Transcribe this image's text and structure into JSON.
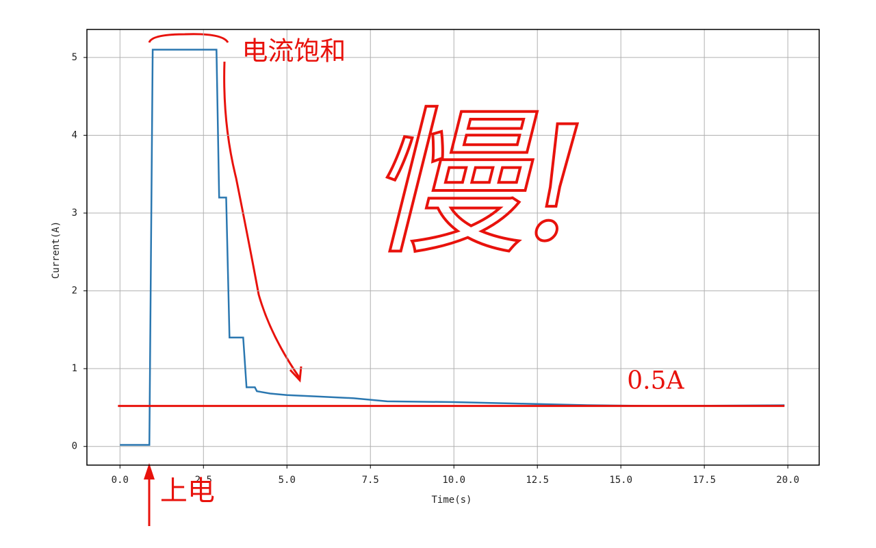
{
  "chart_data": {
    "type": "line",
    "xlabel": "Time(s)",
    "ylabel": "Current(A)",
    "xlim": [
      -0.99,
      20.94
    ],
    "ylim": [
      -0.24,
      5.36
    ],
    "xticks": [
      {
        "value": 0,
        "label": "0.0"
      },
      2.5,
      {
        "value": 5,
        "label": "5.0"
      },
      7.5,
      {
        "value": 10,
        "label": "10.0"
      },
      12.5,
      {
        "value": 15,
        "label": "15.0"
      },
      17.5,
      {
        "value": 20,
        "label": "20.0"
      }
    ],
    "yticks": [
      0,
      1,
      2,
      3,
      4,
      5
    ],
    "grid": true,
    "series": [
      {
        "color": "#2a77b0",
        "x": [
          0,
          0.88,
          0.98,
          2.89,
          2.97,
          3.18,
          3.28,
          3.69,
          3.79,
          4.04,
          4.1,
          4.5,
          5,
          6,
          7,
          7.5,
          8,
          10,
          12,
          14,
          16,
          19.9
        ],
        "values": [
          0.02,
          0.02,
          5.1,
          5.1,
          3.2,
          3.2,
          1.4,
          1.4,
          0.76,
          0.76,
          0.71,
          0.68,
          0.66,
          0.64,
          0.62,
          0.6,
          0.58,
          0.57,
          0.55,
          0.53,
          0.52,
          0.53
        ]
      }
    ],
    "hline": {
      "y": 0.52,
      "xmin": -0.06,
      "xmax": 19.9,
      "color": "#e8120c",
      "label": "0.5A"
    },
    "annotations": [
      {
        "text": "电流饱和",
        "x": 3.65,
        "y": 5.05
      },
      {
        "text": "上电",
        "x": 1.2,
        "y": -0.6
      },
      {
        "text": "慢!",
        "x": 10.7,
        "y": 3.2
      }
    ]
  }
}
